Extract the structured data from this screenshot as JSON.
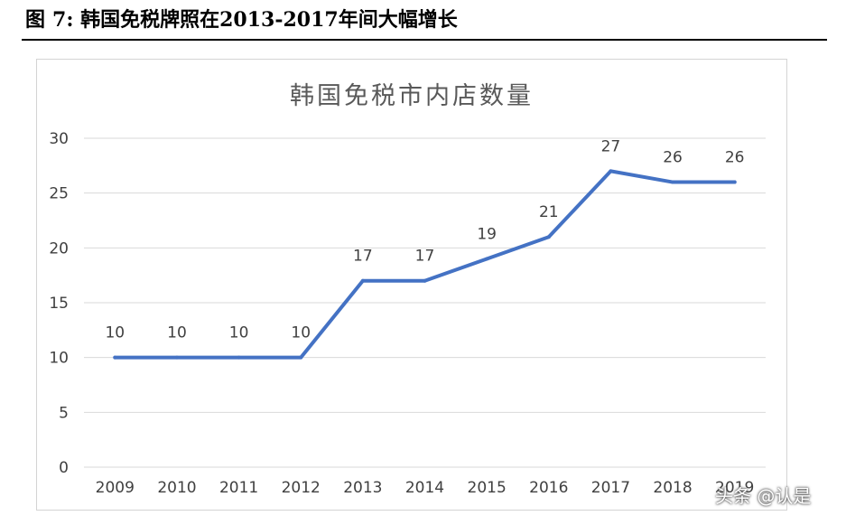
{
  "figure": {
    "label": "图",
    "number": "7:",
    "caption": "韩国免税牌照在2013-2017年间大幅增长"
  },
  "watermark": "头条 @认是",
  "colors": {
    "line": "#4472C4",
    "grid": "#d9d9d9",
    "text": "#404040",
    "title": "#595959"
  },
  "chart_data": {
    "type": "line",
    "title": "韩国免税市内店数量",
    "xlabel": "",
    "ylabel": "",
    "categories": [
      "2009",
      "2010",
      "2011",
      "2012",
      "2013",
      "2014",
      "2015",
      "2016",
      "2017",
      "2018",
      "2019"
    ],
    "series": [
      {
        "values": [
          10,
          10,
          10,
          10,
          17,
          17,
          19,
          21,
          27,
          26,
          26
        ]
      }
    ],
    "ylim": [
      0,
      30
    ],
    "yticks": [
      "0",
      "5",
      "10",
      "15",
      "20",
      "25",
      "30"
    ],
    "data_labels": [
      "10",
      "10",
      "10",
      "10",
      "17",
      "17",
      "19",
      "21",
      "27",
      "26",
      "26"
    ],
    "grid": true,
    "legend": "none"
  }
}
